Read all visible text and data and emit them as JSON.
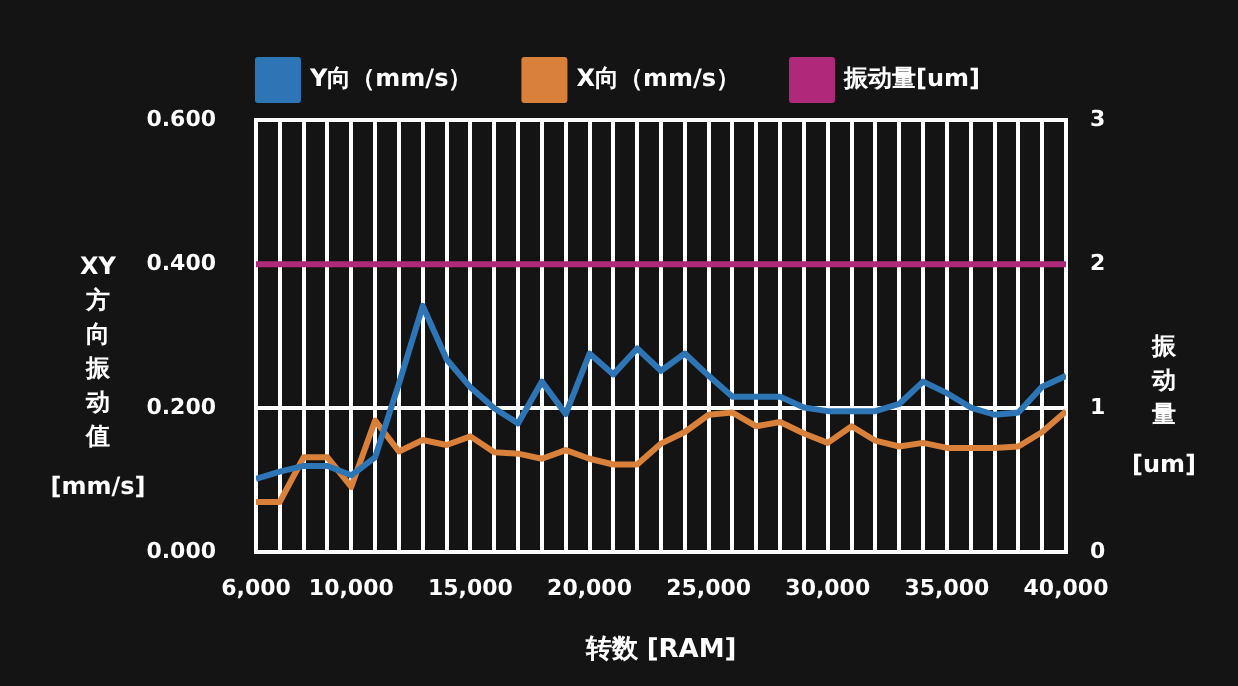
{
  "chart_data": {
    "type": "line",
    "xlabel": "转数 [RAM]",
    "ylabel": "XY方向振动值 [mm/s]",
    "y2label": "振动量 [um]",
    "legend": "top",
    "grid": true,
    "x": [
      6000,
      7000,
      8000,
      9000,
      10000,
      11000,
      12000,
      13000,
      14000,
      15000,
      16000,
      17000,
      18000,
      19000,
      20000,
      21000,
      22000,
      23000,
      24000,
      25000,
      26000,
      27000,
      28000,
      29000,
      30000,
      31000,
      32000,
      33000,
      34000,
      35000,
      36000,
      37000,
      38000,
      39000,
      40000
    ],
    "series": [
      {
        "name": "Y向（mm/s）",
        "color": "#2e75b6",
        "values": [
          0.102,
          0.112,
          0.12,
          0.12,
          0.107,
          0.132,
          0.234,
          0.342,
          0.268,
          0.229,
          0.2,
          0.179,
          0.237,
          0.192,
          0.276,
          0.247,
          0.283,
          0.252,
          0.276,
          0.245,
          0.216,
          0.216,
          0.216,
          0.201,
          0.196,
          0.196,
          0.196,
          0.206,
          0.237,
          0.221,
          0.201,
          0.191,
          0.194,
          0.23,
          0.245
        ]
      },
      {
        "name": "X向（mm/s）",
        "color": "#d9813a",
        "values": [
          0.07,
          0.07,
          0.132,
          0.132,
          0.091,
          0.183,
          0.14,
          0.156,
          0.149,
          0.161,
          0.139,
          0.137,
          0.13,
          0.142,
          0.13,
          0.122,
          0.122,
          0.151,
          0.167,
          0.191,
          0.194,
          0.175,
          0.181,
          0.165,
          0.152,
          0.175,
          0.155,
          0.147,
          0.152,
          0.145,
          0.145,
          0.145,
          0.147,
          0.167,
          0.196
        ]
      },
      {
        "name": "振动量[um]",
        "color": "#b0287a",
        "axis": "y2",
        "x": [
          6000,
          40000
        ],
        "values": [
          2,
          2
        ]
      }
    ],
    "xlim": [
      6000,
      40000
    ],
    "xticks": [
      {
        "value": 6000,
        "label": "6,000"
      },
      {
        "value": 7000,
        "label": null
      },
      {
        "value": 8000,
        "label": null
      },
      {
        "value": 9000,
        "label": null
      },
      {
        "value": 10000,
        "label": "10,000"
      },
      {
        "value": 11000,
        "label": null
      },
      {
        "value": 12000,
        "label": null
      },
      {
        "value": 13000,
        "label": null
      },
      {
        "value": 14000,
        "label": null
      },
      {
        "value": 15000,
        "label": "15,000"
      },
      {
        "value": 16000,
        "label": null
      },
      {
        "value": 17000,
        "label": null
      },
      {
        "value": 18000,
        "label": null
      },
      {
        "value": 19000,
        "label": null
      },
      {
        "value": 20000,
        "label": "20,000"
      },
      {
        "value": 21000,
        "label": null
      },
      {
        "value": 22000,
        "label": null
      },
      {
        "value": 23000,
        "label": null
      },
      {
        "value": 24000,
        "label": null
      },
      {
        "value": 25000,
        "label": "25,000"
      },
      {
        "value": 26000,
        "label": null
      },
      {
        "value": 27000,
        "label": null
      },
      {
        "value": 28000,
        "label": null
      },
      {
        "value": 29000,
        "label": null
      },
      {
        "value": 30000,
        "label": "30,000"
      },
      {
        "value": 31000,
        "label": null
      },
      {
        "value": 32000,
        "label": null
      },
      {
        "value": 33000,
        "label": null
      },
      {
        "value": 34000,
        "label": null
      },
      {
        "value": 35000,
        "label": "35,000"
      },
      {
        "value": 36000,
        "label": null
      },
      {
        "value": 37000,
        "label": null
      },
      {
        "value": 38000,
        "label": null
      },
      {
        "value": 39000,
        "label": null
      },
      {
        "value": 40000,
        "label": "40,000"
      }
    ],
    "ylim": [
      0,
      0.6
    ],
    "yticks": [
      {
        "value": 0,
        "label": "0.000"
      },
      {
        "value": 0.2,
        "label": "0.200"
      },
      {
        "value": 0.4,
        "label": "0.400"
      },
      {
        "value": 0.6,
        "label": "0.600"
      }
    ],
    "y2lim": [
      0,
      3
    ],
    "y2ticks": [
      0,
      1,
      2,
      3
    ]
  }
}
